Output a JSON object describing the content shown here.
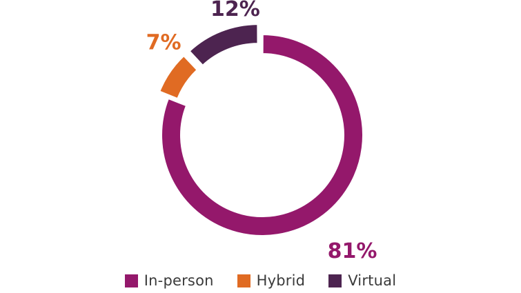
{
  "chart_data": {
    "type": "pie",
    "donut": true,
    "categories": [
      "In-person",
      "Hybrid",
      "Virtual"
    ],
    "values": [
      81,
      7,
      12
    ],
    "labels": [
      "81%",
      "7%",
      "12%"
    ],
    "colors": [
      "#94186b",
      "#e06b23",
      "#4d2450"
    ],
    "label_colors": [
      "#94186b",
      "#e06b23",
      "#4d2450"
    ],
    "legend_position": "bottom",
    "title": "",
    "xlabel": "",
    "ylabel": ""
  }
}
